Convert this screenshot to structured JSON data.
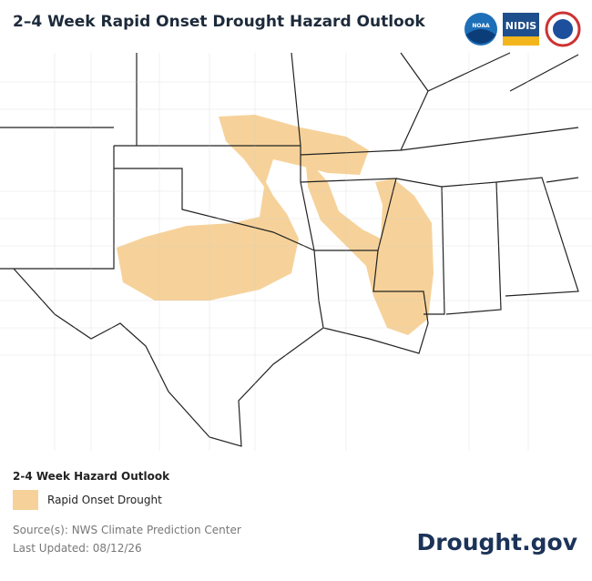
{
  "header": {
    "title": "2–4 Week Rapid Onset Drought Hazard Outlook",
    "logos": [
      "NOAA",
      "NIDIS"
    ]
  },
  "legend": {
    "title": "2-4 Week Hazard Outlook",
    "items": [
      "Rapid Onset Drought"
    ]
  },
  "footer": {
    "source": "Source(s): NWS Climate Prediction Center",
    "last_updated": "Last Updated: 08/12/26",
    "brand": "Drought.gov"
  }
}
